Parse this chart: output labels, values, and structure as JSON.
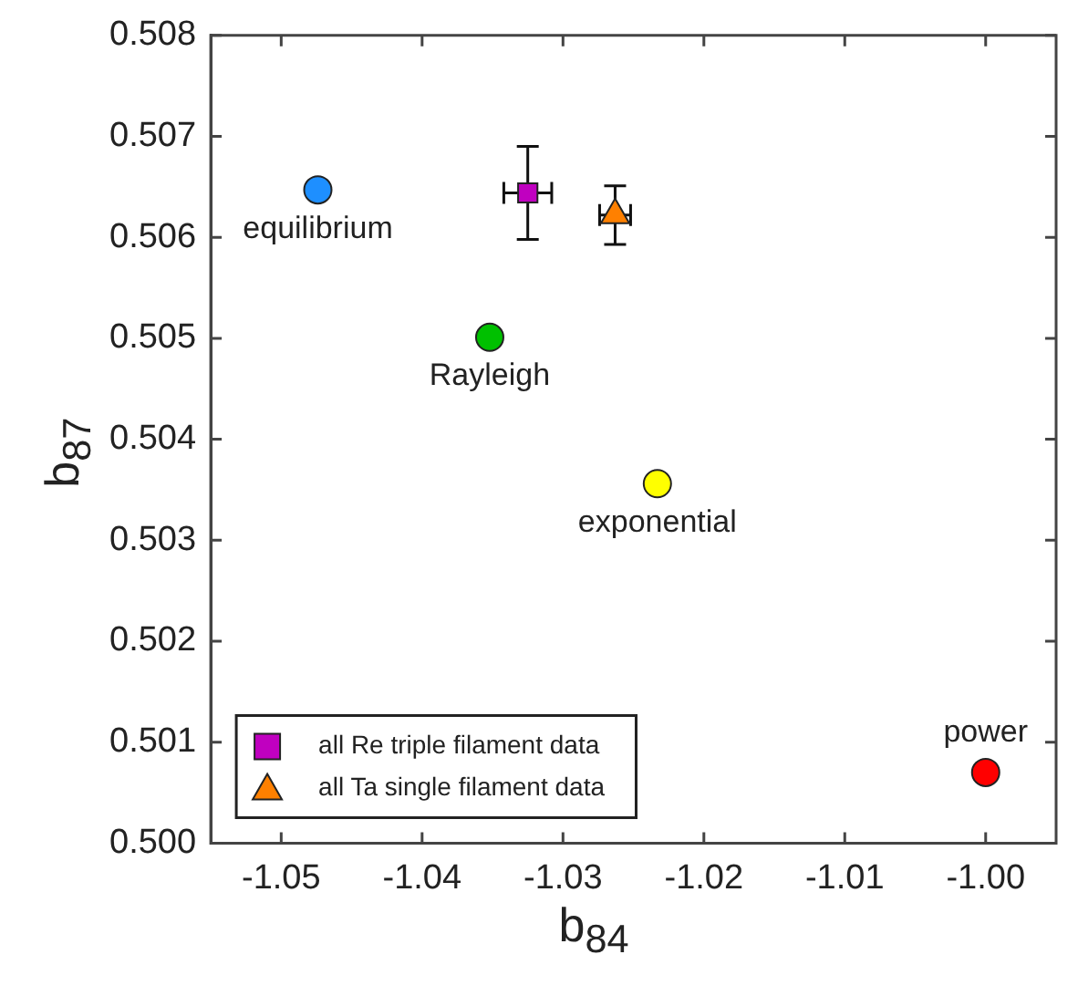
{
  "chart_data": {
    "type": "scatter",
    "xlabel": "b$_{84}$",
    "ylabel": "b$_{87}$",
    "xlim": [
      -1.055,
      -0.995
    ],
    "xticks": [
      {
        "value": -1.05,
        "label": "-1.05"
      },
      {
        "value": -1.04,
        "label": "-1.04"
      },
      {
        "value": -1.03,
        "label": "-1.03"
      },
      {
        "value": -1.02,
        "label": "-1.02"
      },
      {
        "value": -1.01,
        "label": "-1.01"
      },
      {
        "value": -1.0,
        "label": "-1.00"
      }
    ],
    "ylim": [
      0.5,
      0.508
    ],
    "yticks": [
      {
        "value": 0.5,
        "label": "0.500"
      },
      {
        "value": 0.501,
        "label": "0.501"
      },
      {
        "value": 0.502,
        "label": "0.502"
      },
      {
        "value": 0.503,
        "label": "0.503"
      },
      {
        "value": 0.504,
        "label": "0.504"
      },
      {
        "value": 0.505,
        "label": "0.505"
      },
      {
        "value": 0.506,
        "label": "0.506"
      },
      {
        "value": 0.507,
        "label": "0.507"
      },
      {
        "value": 0.508,
        "label": "0.508"
      }
    ],
    "grid": false,
    "legend": "bottom left",
    "series": [
      {
        "x": [
          -1.0474,
          -1.0352,
          -1.0233,
          -1.0
        ],
        "values": [
          0.50647,
          0.50501,
          0.50356,
          0.5007
        ],
        "colors": [
          "#1e8fff",
          "#00c000",
          "#ffff00",
          "#ff0000"
        ],
        "marker": "circle"
      },
      {
        "name": "all Re triple filament data",
        "color": "#c000c0",
        "marker": "square",
        "x": [
          -1.0325
        ],
        "values": [
          0.50644
        ],
        "errors": [
          0.00046
        ],
        "xerrors": [
          0.0017
        ]
      },
      {
        "name": "all Ta single filament data",
        "color": "#ff8000",
        "marker": "triangle",
        "x": [
          -1.0263
        ],
        "values": [
          0.50622
        ],
        "errors": [
          0.00029
        ],
        "xerrors": [
          0.0011
        ]
      }
    ],
    "annotations": [
      {
        "text": "equilibrium",
        "x": -1.0474,
        "y": 0.50647
      },
      {
        "text": "Rayleigh",
        "x": -1.0352,
        "y": 0.50501
      },
      {
        "text": "exponential",
        "x": -1.0233,
        "y": 0.50356
      },
      {
        "text": "power",
        "x": -1.0,
        "y": 0.5007
      }
    ]
  }
}
